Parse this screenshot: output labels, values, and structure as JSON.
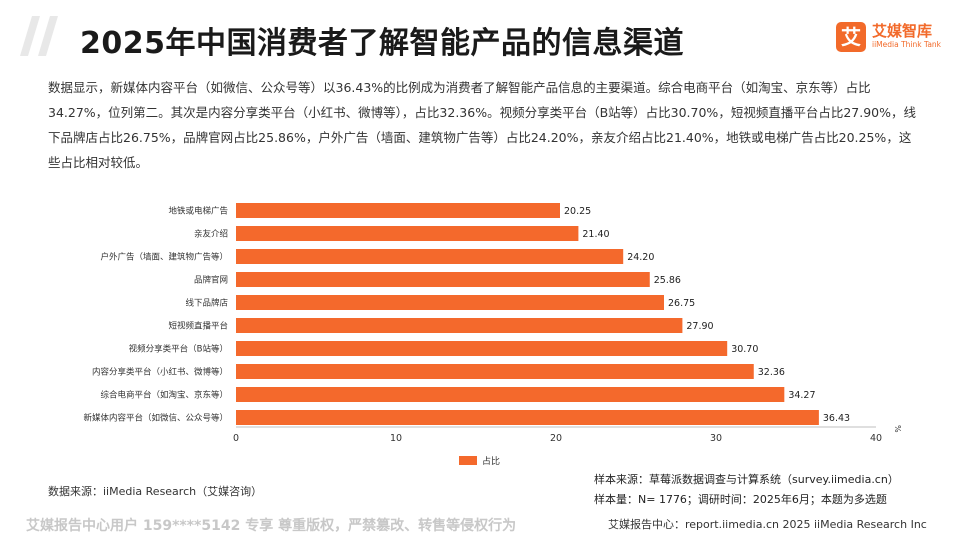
{
  "header": {
    "title": "2025年中国消费者了解智能产品的信息渠道",
    "brand_cn": "艾媒智库",
    "brand_en": "iiMedia Think Tank",
    "brand_mark": "艾"
  },
  "description": "数据显示，新媒体内容平台（如微信、公众号等）以36.43%的比例成为消费者了解智能产品信息的主要渠道。综合电商平台（如淘宝、京东等）占比34.27%，位列第二。其次是内容分享类平台（小红书、微博等），占比32.36%。视频分享类平台（B站等）占比30.70%，短视频直播平台占比27.90%，线下品牌店占比26.75%，品牌官网占比25.86%，户外广告（墙面、建筑物广告等）占比24.20%，亲友介绍占比21.40%，地铁或电梯广告占比20.25%，这些占比相对较低。",
  "chart_data": {
    "type": "bar",
    "orientation": "horizontal",
    "categories": [
      "地铁或电梯广告",
      "亲友介绍",
      "户外广告（墙面、建筑物广告等）",
      "品牌官网",
      "线下品牌店",
      "短视频直播平台",
      "视频分享类平台（B站等）",
      "内容分享类平台（小红书、微博等）",
      "综合电商平台（如淘宝、京东等）",
      "新媒体内容平台（如微信、公众号等）"
    ],
    "series": [
      {
        "name": "占比",
        "values": [
          20.25,
          21.4,
          24.2,
          25.86,
          26.75,
          27.9,
          30.7,
          32.36,
          34.27,
          36.43
        ],
        "value_labels": [
          "20.25",
          "21.40",
          "24.20",
          "25.86",
          "26.75",
          "27.90",
          "30.70",
          "32.36",
          "34.27",
          "36.43"
        ]
      }
    ],
    "x_ticks": [
      "0",
      "10",
      "20",
      "30",
      "40"
    ],
    "xlim": [
      0,
      40
    ],
    "x_unit": "%",
    "grid": false,
    "legend_position": "bottom-center",
    "bar_color": "#f4692c"
  },
  "sources": {
    "data_source": "数据来源：iiMedia Research（艾媒咨询）",
    "sample_source": "样本来源：草莓派数据调查与计算系统（survey.iimedia.cn）",
    "sample_size": "样本量：N= 1776；调研时间：2025年6月；本题为多选题"
  },
  "footer": {
    "watermark": "艾媒报告中心用户 159****5142 专享 尊重版权，严禁篡改、转售等侵权行为",
    "site": "艾媒报告中心：report.iimedia.cn  2025 iiMedia Research Inc"
  },
  "colors": {
    "accent": "#f26a2a",
    "slash": "#e8e8e8"
  }
}
